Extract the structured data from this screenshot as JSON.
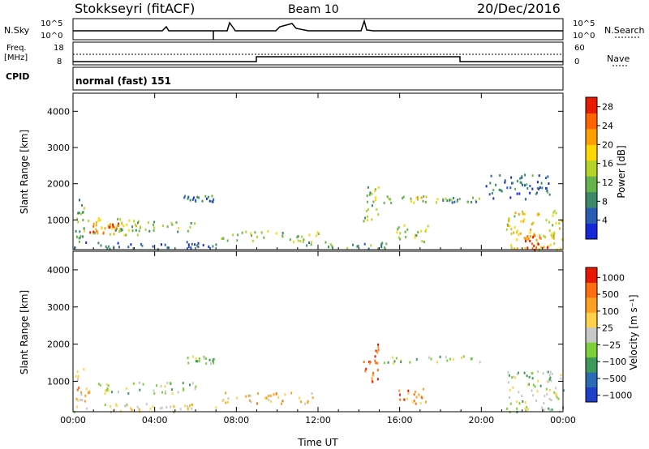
{
  "header": {
    "station": "Stokkseyri (fitACF)",
    "beam": "Beam 10",
    "date": "20/Dec/2016"
  },
  "top_panels": {
    "nsky_label": "N.Sky",
    "nsearch_label": "N.Search",
    "count_ticks": [
      "10^5",
      "10^0"
    ],
    "freq_label": "Freq.",
    "freq_unit": "[MHz]",
    "freq_ticks": [
      "18",
      "8"
    ],
    "nave_label": "Nave",
    "nave_ticks": [
      "60",
      "0"
    ],
    "cpid_label": "CPID",
    "cpid_value": "normal (fast) 151"
  },
  "chart_data": [
    {
      "type": "heatmap",
      "name": "power",
      "ylabel": "Slant Range [km]",
      "xlabel": "",
      "x_ticks": [
        "00:00",
        "04:00",
        "08:00",
        "12:00",
        "16:00",
        "20:00",
        "00:00"
      ],
      "xlim_hours": [
        0,
        24
      ],
      "y_ticks": [
        1000,
        2000,
        3000,
        4000
      ],
      "ylim": [
        180,
        4500
      ],
      "colorbar": {
        "label": "Power [dB]",
        "ticks": [
          4,
          8,
          12,
          16,
          20,
          24,
          28
        ],
        "range": [
          0,
          30
        ],
        "colors": [
          "#1428d8",
          "#2a5cb4",
          "#3a8a6a",
          "#64b44a",
          "#b4d228",
          "#ffd700",
          "#ffa000",
          "#ff6400",
          "#e81a00"
        ]
      },
      "echo_regions": [
        {
          "t0": 0.0,
          "t1": 7.0,
          "r0": 200,
          "r1": 420,
          "level": 0.18
        },
        {
          "t0": 0.1,
          "t1": 0.6,
          "r0": 420,
          "r1": 1600,
          "level": 0.3
        },
        {
          "t0": 0.4,
          "t1": 3.2,
          "r0": 600,
          "r1": 1100,
          "level": 0.55
        },
        {
          "t0": 0.8,
          "t1": 2.2,
          "r0": 650,
          "r1": 1000,
          "level": 0.8
        },
        {
          "t0": 2.0,
          "t1": 6.0,
          "r0": 700,
          "r1": 1000,
          "level": 0.4
        },
        {
          "t0": 5.4,
          "t1": 6.9,
          "r0": 1500,
          "r1": 1700,
          "level": 0.25
        },
        {
          "t0": 7.2,
          "t1": 12.0,
          "r0": 420,
          "r1": 720,
          "level": 0.45
        },
        {
          "t0": 11.0,
          "t1": 15.6,
          "r0": 220,
          "r1": 420,
          "level": 0.3
        },
        {
          "t0": 14.2,
          "t1": 15.0,
          "r0": 1000,
          "r1": 2100,
          "level": 0.45
        },
        {
          "t0": 15.2,
          "t1": 18.0,
          "r0": 1500,
          "r1": 1700,
          "level": 0.55
        },
        {
          "t0": 18.0,
          "t1": 20.0,
          "r0": 1500,
          "r1": 1650,
          "level": 0.3
        },
        {
          "t0": 15.8,
          "t1": 17.4,
          "r0": 420,
          "r1": 880,
          "level": 0.5
        },
        {
          "t0": 20.2,
          "t1": 23.4,
          "r0": 1600,
          "r1": 2300,
          "level": 0.2
        },
        {
          "t0": 21.2,
          "t1": 24.0,
          "r0": 200,
          "r1": 1300,
          "level": 0.6
        },
        {
          "t0": 22.0,
          "t1": 23.2,
          "r0": 200,
          "r1": 600,
          "level": 0.9
        }
      ]
    },
    {
      "type": "heatmap",
      "name": "velocity",
      "ylabel": "Slant Range [km]",
      "xlabel": "Time UT",
      "x_ticks": [
        "00:00",
        "04:00",
        "08:00",
        "12:00",
        "16:00",
        "20:00",
        "00:00"
      ],
      "xlim_hours": [
        0,
        24
      ],
      "y_ticks": [
        1000,
        2000,
        3000,
        4000
      ],
      "ylim": [
        180,
        4500
      ],
      "colorbar": {
        "label": "Velocity [m s⁻¹]",
        "ticks": [
          "1000",
          "500",
          "100",
          "25",
          "−25",
          "−100",
          "−500",
          "−1000"
        ],
        "colors": [
          "#1e40c8",
          "#2a6cb4",
          "#3c9a5a",
          "#7cd03a",
          "#c8c8c8",
          "#ffd24a",
          "#ffa020",
          "#ff6e10",
          "#e81800"
        ]
      },
      "echo_regions": [
        {
          "t0": 0.0,
          "t1": 7.0,
          "r0": 200,
          "r1": 420,
          "level": 0.55
        },
        {
          "t0": 0.1,
          "t1": 0.8,
          "r0": 420,
          "r1": 1400,
          "level": 0.65
        },
        {
          "t0": 1.0,
          "t1": 6.0,
          "r0": 700,
          "r1": 1000,
          "level": 0.45
        },
        {
          "t0": 5.4,
          "t1": 6.9,
          "r0": 1500,
          "r1": 1700,
          "level": 0.45
        },
        {
          "t0": 7.2,
          "t1": 12.0,
          "r0": 420,
          "r1": 720,
          "level": 0.65
        },
        {
          "t0": 14.2,
          "t1": 15.0,
          "r0": 1000,
          "r1": 2100,
          "level": 0.85
        },
        {
          "t0": 15.2,
          "t1": 20.0,
          "r0": 1500,
          "r1": 1700,
          "level": 0.45
        },
        {
          "t0": 15.8,
          "t1": 17.4,
          "r0": 420,
          "r1": 880,
          "level": 0.78
        },
        {
          "t0": 21.2,
          "t1": 24.0,
          "r0": 200,
          "r1": 1300,
          "level": 0.45
        }
      ]
    }
  ]
}
